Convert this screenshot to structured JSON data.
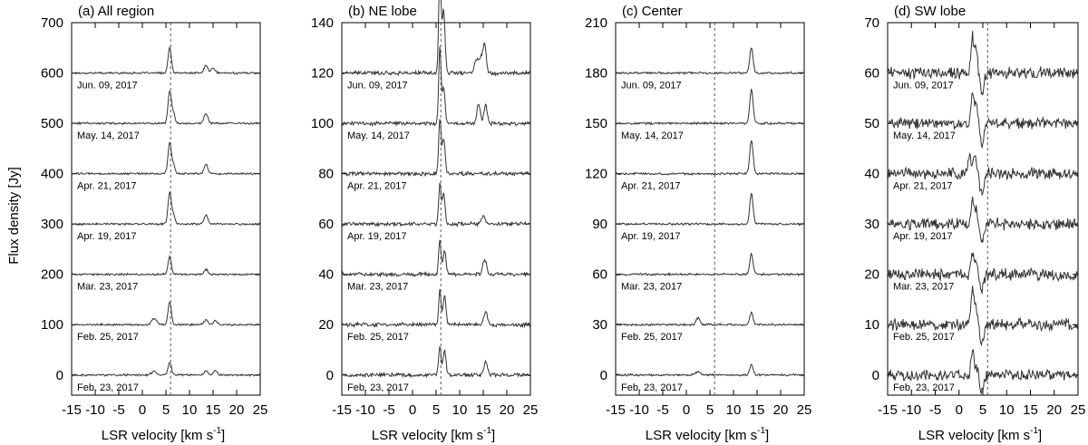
{
  "figure": {
    "ylabel": "Flux density [Jy]",
    "xlabel_main": "LSR velocity [km s",
    "xlabel_sup": "-1",
    "xlabel_close": "]",
    "line_color": "#333333",
    "ref_line_color": "#555555"
  },
  "chart_data": [
    {
      "type": "line",
      "title": "(a) All region",
      "xlim": [
        -15,
        25
      ],
      "ylim": [
        -40,
        700
      ],
      "xticks": [
        -15,
        -10,
        -5,
        0,
        5,
        10,
        15,
        20,
        25
      ],
      "xtick_labels": [
        "-15",
        "-10",
        "-5",
        "0",
        "5",
        "10",
        "15",
        "20",
        "25"
      ],
      "yticks": [
        0,
        100,
        200,
        300,
        400,
        500,
        600,
        700
      ],
      "ytick_labels": [
        "0",
        "100",
        "200",
        "300",
        "400",
        "500",
        "600",
        "700"
      ],
      "ref_velocity": 6,
      "noise": 1.5,
      "series": [
        {
          "name": "Jun. 09, 2017",
          "offset": 600,
          "peaks": [
            [
              5.8,
              50,
              0.35
            ],
            [
              13.5,
              15,
              0.4
            ],
            [
              15,
              10,
              0.4
            ]
          ]
        },
        {
          "name": "May. 14, 2017",
          "offset": 500,
          "peaks": [
            [
              5.8,
              65,
              0.35
            ],
            [
              6.6,
              20,
              0.3
            ],
            [
              13.5,
              20,
              0.4
            ]
          ]
        },
        {
          "name": "Apr. 21, 2017",
          "offset": 400,
          "peaks": [
            [
              5.8,
              62,
              0.35
            ],
            [
              6.6,
              18,
              0.3
            ],
            [
              13.5,
              18,
              0.4
            ]
          ]
        },
        {
          "name": "Apr. 19, 2017",
          "offset": 300,
          "peaks": [
            [
              5.8,
              62,
              0.35
            ],
            [
              6.6,
              18,
              0.3
            ],
            [
              13.5,
              18,
              0.4
            ]
          ]
        },
        {
          "name": "Mar. 23, 2017",
          "offset": 200,
          "peaks": [
            [
              5.8,
              35,
              0.35
            ],
            [
              13.5,
              10,
              0.4
            ]
          ]
        },
        {
          "name": "Feb. 25, 2017",
          "offset": 100,
          "peaks": [
            [
              2.5,
              12,
              0.5
            ],
            [
              5.8,
              45,
              0.35
            ],
            [
              13.5,
              10,
              0.4
            ],
            [
              15.5,
              8,
              0.4
            ]
          ]
        },
        {
          "name": "Feb. 23, 2017",
          "offset": 0,
          "peaks": [
            [
              2.5,
              8,
              0.5
            ],
            [
              5.8,
              25,
              0.35
            ],
            [
              13.5,
              8,
              0.4
            ],
            [
              15.5,
              8,
              0.4
            ]
          ]
        }
      ]
    },
    {
      "type": "line",
      "title": "(b) NE lobe",
      "xlim": [
        -15,
        25
      ],
      "ylim": [
        -8,
        140
      ],
      "xticks": [
        -15,
        -10,
        -5,
        0,
        5,
        10,
        15,
        20,
        25
      ],
      "xtick_labels": [
        "-15",
        "-10",
        "-5",
        "0",
        "5",
        "10",
        "15",
        "20",
        "25"
      ],
      "yticks": [
        0,
        20,
        40,
        60,
        80,
        100,
        120,
        140
      ],
      "ytick_labels": [
        "0",
        "20",
        "40",
        "60",
        "80",
        "100",
        "120",
        "140"
      ],
      "ref_velocity": 6,
      "noise": 0.6,
      "series": [
        {
          "name": "Jun. 09, 2017",
          "offset": 120,
          "peaks": [
            [
              5.8,
              40,
              0.25
            ],
            [
              6.6,
              25,
              0.3
            ],
            [
              13.5,
              5,
              0.4
            ],
            [
              14.5,
              6,
              0.4
            ],
            [
              15.3,
              11,
              0.35
            ]
          ]
        },
        {
          "name": "May. 14, 2017",
          "offset": 100,
          "peaks": [
            [
              5.8,
              30,
              0.25
            ],
            [
              6.6,
              14,
              0.3
            ],
            [
              14,
              8,
              0.35
            ],
            [
              15.5,
              7,
              0.35
            ]
          ]
        },
        {
          "name": "Apr. 21, 2017",
          "offset": 80,
          "peaks": [
            [
              5.8,
              22,
              0.25
            ],
            [
              6.6,
              14,
              0.3
            ]
          ]
        },
        {
          "name": "Apr. 19, 2017",
          "offset": 60,
          "peaks": [
            [
              5.8,
              16,
              0.25
            ],
            [
              6.6,
              12,
              0.3
            ],
            [
              15,
              3,
              0.4
            ]
          ]
        },
        {
          "name": "Mar. 23, 2017",
          "offset": 40,
          "peaks": [
            [
              5.8,
              14,
              0.25
            ],
            [
              6.8,
              10,
              0.3
            ],
            [
              15.3,
              6,
              0.4
            ]
          ]
        },
        {
          "name": "Feb. 25, 2017",
          "offset": 20,
          "peaks": [
            [
              5.8,
              14,
              0.25
            ],
            [
              6.8,
              12,
              0.3
            ],
            [
              15.5,
              5,
              0.4
            ]
          ]
        },
        {
          "name": "Feb. 23, 2017",
          "offset": 0,
          "peaks": [
            [
              5.8,
              12,
              0.25
            ],
            [
              6.8,
              10,
              0.3
            ],
            [
              15.5,
              5,
              0.4
            ]
          ]
        }
      ]
    },
    {
      "type": "line",
      "title": "(c) Center",
      "xlim": [
        -15,
        25
      ],
      "ylim": [
        -12,
        210
      ],
      "xticks": [
        -15,
        -10,
        -5,
        0,
        5,
        10,
        15,
        20,
        25
      ],
      "xtick_labels": [
        "-15",
        "-10",
        "-5",
        "0",
        "5",
        "10",
        "15",
        "20",
        "25"
      ],
      "yticks": [
        0,
        30,
        60,
        90,
        120,
        150,
        180,
        210
      ],
      "ytick_labels": [
        "0",
        "30",
        "60",
        "90",
        "120",
        "150",
        "180",
        "210"
      ],
      "ref_velocity": 6,
      "noise": 0.5,
      "series": [
        {
          "name": "Jun. 09, 2017",
          "offset": 180,
          "peaks": [
            [
              13.8,
              15,
              0.35
            ]
          ]
        },
        {
          "name": "May. 14, 2017",
          "offset": 150,
          "peaks": [
            [
              13.8,
              20,
              0.35
            ]
          ]
        },
        {
          "name": "Apr. 21, 2017",
          "offset": 120,
          "peaks": [
            [
              13.8,
              20,
              0.35
            ]
          ]
        },
        {
          "name": "Apr. 19, 2017",
          "offset": 90,
          "peaks": [
            [
              13.8,
              18,
              0.35
            ]
          ]
        },
        {
          "name": "Mar. 23, 2017",
          "offset": 60,
          "peaks": [
            [
              13.8,
              12,
              0.35
            ]
          ]
        },
        {
          "name": "Feb. 25, 2017",
          "offset": 30,
          "peaks": [
            [
              2.5,
              4,
              0.4
            ],
            [
              13.8,
              7,
              0.35
            ]
          ]
        },
        {
          "name": "Feb. 23, 2017",
          "offset": 0,
          "peaks": [
            [
              2.5,
              2,
              0.5
            ],
            [
              13.8,
              6,
              0.35
            ]
          ]
        }
      ]
    },
    {
      "type": "line",
      "title": "(d) SW lobe",
      "xlim": [
        -15,
        25
      ],
      "ylim": [
        -4,
        70
      ],
      "xticks": [
        -15,
        -10,
        -5,
        0,
        5,
        10,
        15,
        20,
        25
      ],
      "xtick_labels": [
        "-15",
        "-10",
        "-5",
        "0",
        "5",
        "10",
        "15",
        "20",
        "25"
      ],
      "yticks": [
        0,
        10,
        20,
        30,
        40,
        50,
        60,
        70
      ],
      "ytick_labels": [
        "0",
        "10",
        "20",
        "30",
        "40",
        "50",
        "60",
        "70"
      ],
      "ref_velocity": 6,
      "noise": 0.9,
      "series": [
        {
          "name": "Jun. 09, 2017",
          "offset": 60,
          "peaks": [
            [
              2.8,
              7,
              0.3
            ],
            [
              3.6,
              5,
              0.3
            ],
            [
              4.8,
              -4,
              0.4
            ]
          ]
        },
        {
          "name": "May. 14, 2017",
          "offset": 50,
          "peaks": [
            [
              2.8,
              6,
              0.3
            ],
            [
              3.6,
              4,
              0.3
            ],
            [
              4.8,
              -4,
              0.4
            ]
          ]
        },
        {
          "name": "Apr. 21, 2017",
          "offset": 40,
          "peaks": [
            [
              2.2,
              4,
              0.3
            ],
            [
              3.3,
              4,
              0.3
            ],
            [
              4.8,
              -4,
              0.4
            ]
          ]
        },
        {
          "name": "Apr. 19, 2017",
          "offset": 30,
          "peaks": [
            [
              2.8,
              5,
              0.3
            ],
            [
              3.6,
              3,
              0.3
            ],
            [
              4.8,
              -4,
              0.4
            ]
          ]
        },
        {
          "name": "Mar. 23, 2017",
          "offset": 20,
          "peaks": [
            [
              2.8,
              4,
              0.3
            ],
            [
              3.6,
              3,
              0.3
            ],
            [
              4.8,
              -3,
              0.4
            ]
          ]
        },
        {
          "name": "Feb. 25, 2017",
          "offset": 10,
          "peaks": [
            [
              2.8,
              7,
              0.3
            ],
            [
              3.6,
              3,
              0.3
            ],
            [
              4.8,
              -4,
              0.4
            ]
          ]
        },
        {
          "name": "Feb. 23, 2017",
          "offset": 0,
          "peaks": [
            [
              2.8,
              5,
              0.3
            ],
            [
              3.6,
              2,
              0.3
            ],
            [
              4.8,
              -3,
              0.4
            ]
          ]
        }
      ]
    }
  ]
}
